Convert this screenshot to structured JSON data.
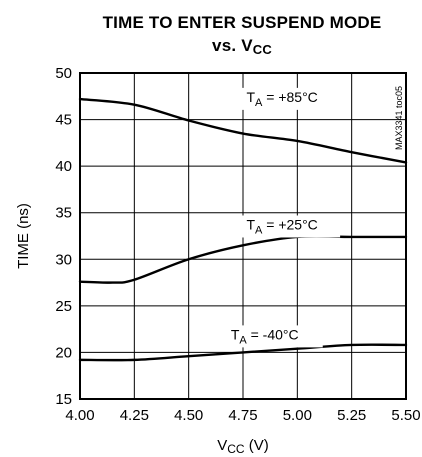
{
  "chart_data": {
    "type": "line",
    "title": {
      "line1": "TIME TO ENTER SUSPEND MODE",
      "line2_main": "vs. V",
      "line2_sub": "CC"
    },
    "xlabel": {
      "main": "V",
      "sub": "CC",
      "unit": " (V)"
    },
    "ylabel": "TIME (ns)",
    "xlim": [
      4.0,
      5.5
    ],
    "ylim": [
      15,
      50
    ],
    "xticks": [
      "4.00",
      "4.25",
      "4.50",
      "4.75",
      "5.00",
      "5.25",
      "5.50"
    ],
    "yticks": [
      "15",
      "20",
      "25",
      "30",
      "35",
      "40",
      "45",
      "50"
    ],
    "grid": true,
    "series": [
      {
        "name": "+85°C",
        "label_prefix": "T",
        "label_sub": "A",
        "label_suffix": " = +85°C",
        "label_at": [
          4.93,
          46.9
        ],
        "x": [
          4.0,
          4.25,
          4.5,
          4.75,
          5.0,
          5.25,
          5.5
        ],
        "y": [
          47.2,
          46.6,
          44.9,
          43.5,
          42.7,
          41.5,
          40.4
        ]
      },
      {
        "name": "+25°C",
        "label_prefix": "T",
        "label_sub": "A",
        "label_suffix": " = +25°C",
        "label_at": [
          4.93,
          33.2
        ],
        "x": [
          4.0,
          4.15,
          4.25,
          4.5,
          4.75,
          5.0,
          5.25,
          5.5
        ],
        "y": [
          27.6,
          27.5,
          27.8,
          30.0,
          31.5,
          32.4,
          32.4,
          32.4
        ]
      },
      {
        "name": "-40°C",
        "label_prefix": "T",
        "label_sub": "A",
        "label_suffix": " = -40°C",
        "label_at": [
          4.85,
          21.4
        ],
        "x": [
          4.0,
          4.25,
          4.5,
          4.75,
          5.0,
          5.25,
          5.5
        ],
        "y": [
          19.2,
          19.2,
          19.6,
          20.0,
          20.4,
          20.8,
          20.8
        ]
      }
    ],
    "part_code": "MAX3341 toc05"
  }
}
